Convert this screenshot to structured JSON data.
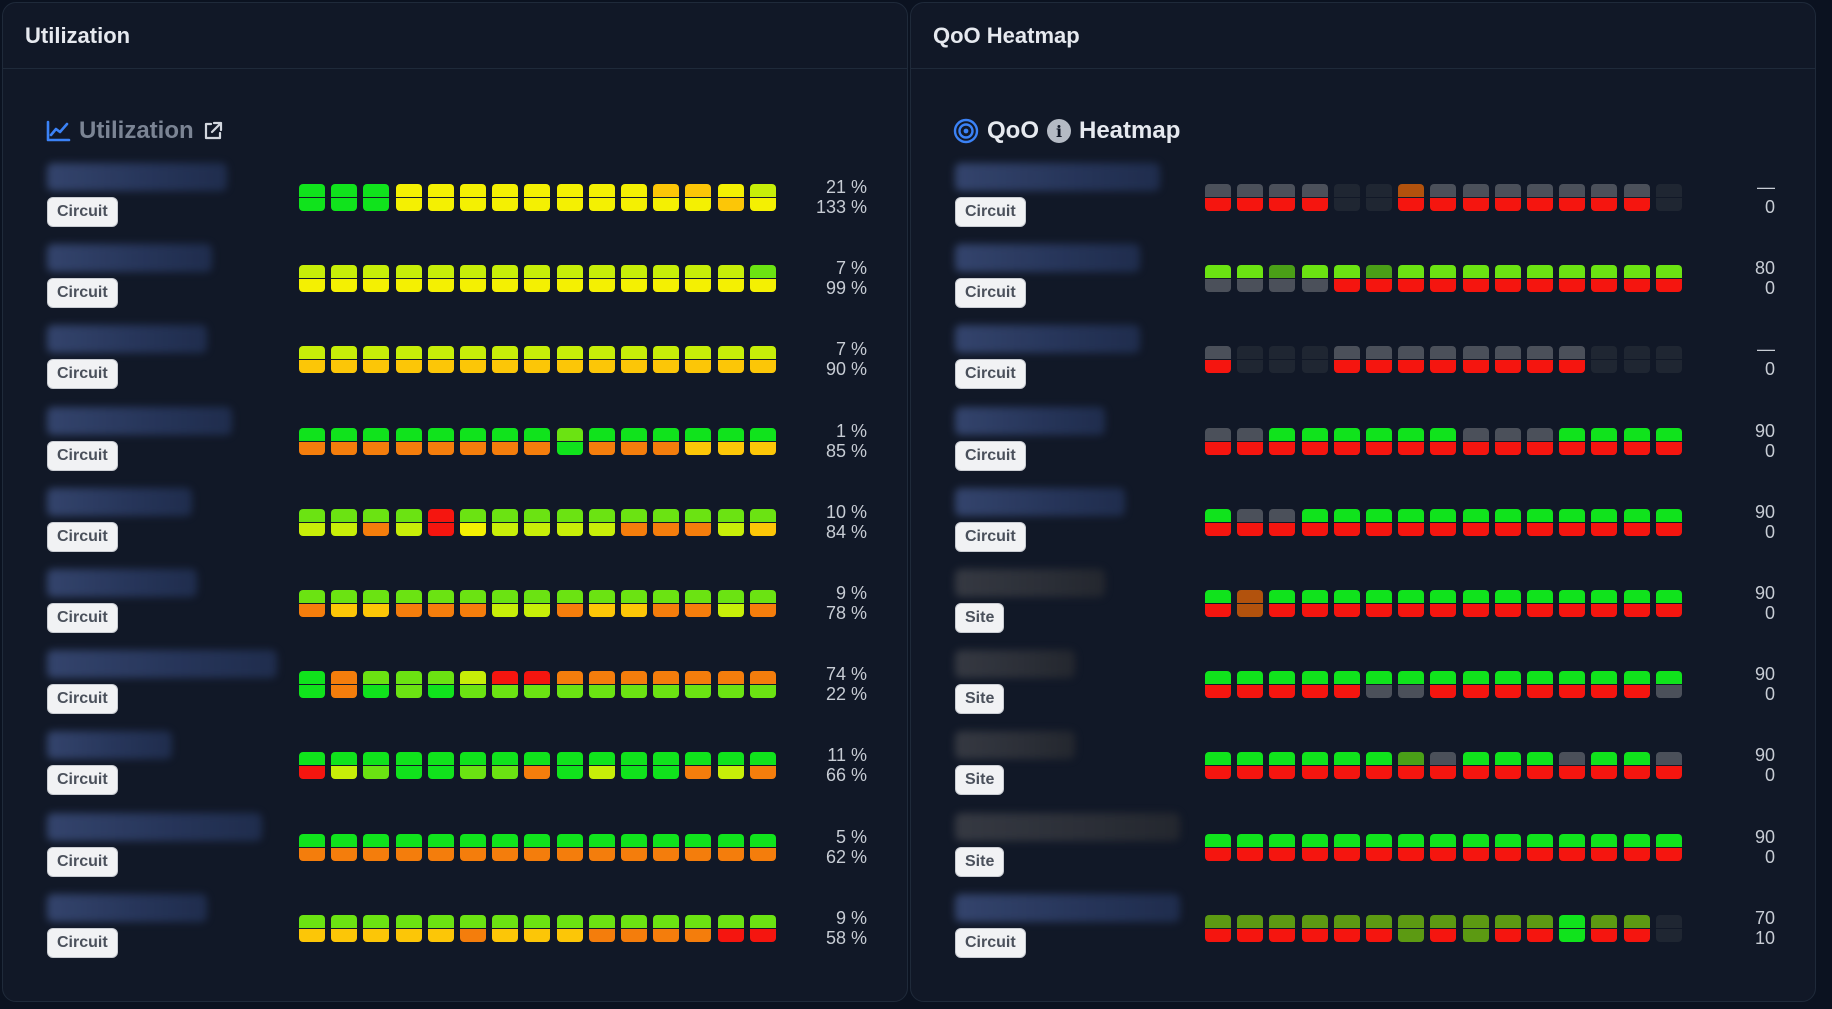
{
  "palette": {
    "G": "#10e31c",
    "L": "#6be312",
    "Y": "#f4f002",
    "W": "#c7ee08",
    "A": "#fcc607",
    "O": "#f47d0c",
    "R": "#f5150f",
    "D": "#4b505a",
    "E": "#1f2632",
    "B": "#b2520d",
    "V": "#5c9a12",
    "S": "#4a9f17"
  },
  "utilization": {
    "header_title": "Utilization",
    "title": "Utilization",
    "chart_icon": "chart-line-icon",
    "link_icon": "external-link-icon",
    "rows": [
      {
        "tag": "Circuit",
        "top_value": "21 %",
        "bottom_value": "133 %",
        "top": "GGGYYYYYYYYAAYW",
        "bottom": "GGGYYYYYYYYYYAY"
      },
      {
        "tag": "Circuit",
        "top_value": "7 %",
        "bottom_value": "99 %",
        "top": "WWWWWWWWWWWWWWL",
        "bottom": "YYYYYYYYYYYYYYY"
      },
      {
        "tag": "Circuit",
        "top_value": "7 %",
        "bottom_value": "90 %",
        "top": "WWWWWWWWWWWWWWW",
        "bottom": "AAAAAAAAAAAAAAA"
      },
      {
        "tag": "Circuit",
        "top_value": "1 %",
        "bottom_value": "85 %",
        "top": "GGGGGGGGLGGGGGG",
        "bottom": "OOOOOOOOGOOOAAA"
      },
      {
        "tag": "Circuit",
        "top_value": "10 %",
        "bottom_value": "84 %",
        "top": "LLLLRLLLLLLLLLL",
        "bottom": "WWOWRYWWWWOOOWA"
      },
      {
        "tag": "Circuit",
        "top_value": "9 %",
        "bottom_value": "78 %",
        "top": "LLLLLLLLLLLLLLL",
        "bottom": "OAAOOOWWOAAOOWO"
      },
      {
        "tag": "Circuit",
        "top_value": "74 %",
        "bottom_value": "22 %",
        "top": "GOLLLWRROOOOOOO",
        "bottom": "GOGLGLLLLLLLLLL"
      },
      {
        "tag": "Circuit",
        "top_value": "11 %",
        "bottom_value": "66 %",
        "top": "GGGGGGGGGGGGGGG",
        "bottom": "RWLGGLLOGWGGOWO"
      },
      {
        "tag": "Circuit",
        "top_value": "5 %",
        "bottom_value": "62 %",
        "top": "GGGGGGGGGGGGGGG",
        "bottom": "OOOOOOOOOOOOOOO"
      },
      {
        "tag": "Circuit",
        "top_value": "9 %",
        "bottom_value": "58 %",
        "top": "LLLLLLLLLLLLLLL",
        "bottom": "AAAAAOAAAOOOORR"
      }
    ]
  },
  "qoo": {
    "header_title": "QoO Heatmap",
    "title_left": "QoO",
    "title_right": "Heatmap",
    "target_icon": "target-icon",
    "info_icon": "info-icon",
    "info_glyph": "i",
    "rows": [
      {
        "tag": "Circuit",
        "top_value": "—",
        "bottom_value": "0",
        "top": "DDDDEEBDDDDDDDE",
        "bottom": "RRRREERRRRRRRRE"
      },
      {
        "tag": "Circuit",
        "top_value": "80",
        "bottom_value": "0",
        "top": "LLSLLSLLLLLLLLL",
        "bottom": "DDDDRRRRRRRRRRR"
      },
      {
        "tag": "Circuit",
        "top_value": "—",
        "bottom_value": "0",
        "top": "DEEEDDDDDDDDEEE",
        "bottom": "REEERRRRRRRREEE"
      },
      {
        "tag": "Circuit",
        "top_value": "90",
        "bottom_value": "0",
        "top": "DDGGGGGGDDDGGGG",
        "bottom": "RRRRRRRRRRRRRRR"
      },
      {
        "tag": "Circuit",
        "top_value": "90",
        "bottom_value": "0",
        "top": "GDDGGGGGGGGGGGG",
        "bottom": "RRRRRRRRRRRRRRR"
      },
      {
        "tag": "Site",
        "top_value": "90",
        "bottom_value": "0",
        "top": "GBGGGGGGGGGGGGG",
        "bottom": "RBRRRRRRRRRRRRR"
      },
      {
        "tag": "Site",
        "top_value": "90",
        "bottom_value": "0",
        "top": "GGGGGGGGGGGGGGG",
        "bottom": "RRRRRDDRRRRRRRD"
      },
      {
        "tag": "Site",
        "top_value": "90",
        "bottom_value": "0",
        "top": "GGGGGGSDGGGDGGD",
        "bottom": "RRRRRRRRRRRRRRR"
      },
      {
        "tag": "Site",
        "top_value": "90",
        "bottom_value": "0",
        "top": "GGGGGGGGGGGGGGG",
        "bottom": "RRRRRRRRRRRRRRR"
      },
      {
        "tag": "Circuit",
        "top_value": "70",
        "bottom_value": "10",
        "top": "VVVVVVVVVVVGVVE",
        "bottom": "RRRRRRVRVRRGRRE"
      }
    ]
  }
}
